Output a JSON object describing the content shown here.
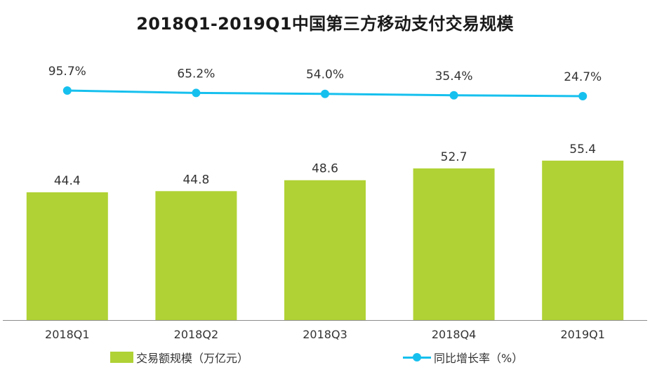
{
  "colors": {
    "bar": "#b0d235",
    "line": "#16c0ee",
    "axis": "#8c8c8c",
    "label": "#333333"
  },
  "chart_data": {
    "type": "bar",
    "title": "2018Q1-2019Q1中国第三方移动支付交易规模",
    "categories": [
      "2018Q1",
      "2018Q2",
      "2018Q3",
      "2018Q4",
      "2019Q1"
    ],
    "series": [
      {
        "name": "交易额规模（万亿元）",
        "type": "bar",
        "values": [
          44.4,
          44.8,
          48.6,
          52.7,
          55.4
        ],
        "labels": [
          "44.4",
          "44.8",
          "48.6",
          "52.7",
          "55.4"
        ]
      },
      {
        "name": "同比增长率（%）",
        "type": "line",
        "values": [
          95.7,
          65.2,
          54.0,
          35.4,
          24.7
        ],
        "labels": [
          "95.7%",
          "65.2%",
          "54.0%",
          "35.4%",
          "24.7%"
        ]
      }
    ],
    "grid": false,
    "legend_position": "bottom"
  }
}
